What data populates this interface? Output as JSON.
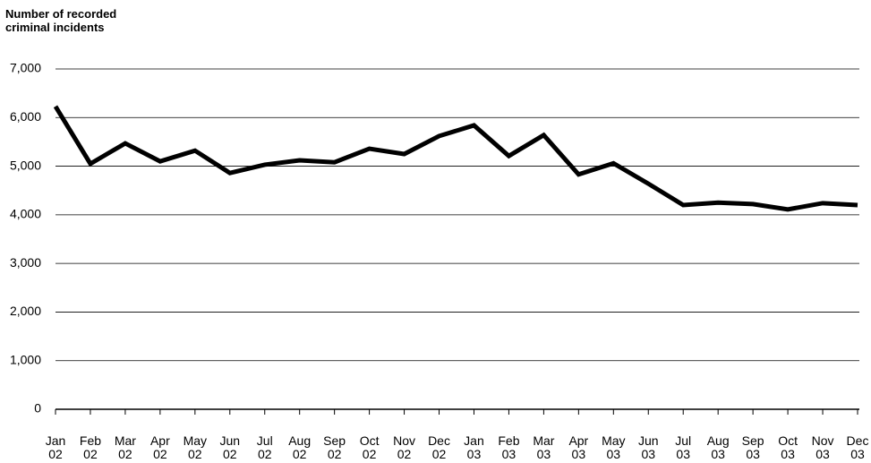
{
  "chart_data": {
    "type": "line",
    "title": "Number of recorded\ncriminal incidents",
    "categories": [
      "Jan\n02",
      "Feb\n02",
      "Mar\n02",
      "Apr\n02",
      "May\n02",
      "Jun\n02",
      "Jul\n02",
      "Aug\n02",
      "Sep\n02",
      "Oct\n02",
      "Nov\n02",
      "Dec\n02",
      "Jan\n03",
      "Feb\n03",
      "Mar\n03",
      "Apr\n03",
      "May\n03",
      "Jun\n03",
      "Jul\n03",
      "Aug\n03",
      "Sep\n03",
      "Oct\n03",
      "Nov\n03",
      "Dec\n03"
    ],
    "values": [
      6230,
      5050,
      5470,
      5100,
      5320,
      4860,
      5030,
      5120,
      5080,
      5360,
      5250,
      5620,
      5840,
      5210,
      5640,
      4830,
      5060,
      4640,
      4200,
      4250,
      4220,
      4110,
      4240,
      4200
    ],
    "color": "#000000",
    "ylim": [
      0,
      7000
    ],
    "yticks": [
      0,
      {
        "value": 1000,
        "label": "1,000"
      },
      {
        "value": 2000,
        "label": "2,000"
      },
      {
        "value": 3000,
        "label": "3,000"
      },
      {
        "value": 4000,
        "label": "4,000"
      },
      {
        "value": 5000,
        "label": "5,000"
      },
      {
        "value": 6000,
        "label": "6,000"
      },
      {
        "value": 7000,
        "label": "7,000"
      }
    ],
    "grid": true
  }
}
